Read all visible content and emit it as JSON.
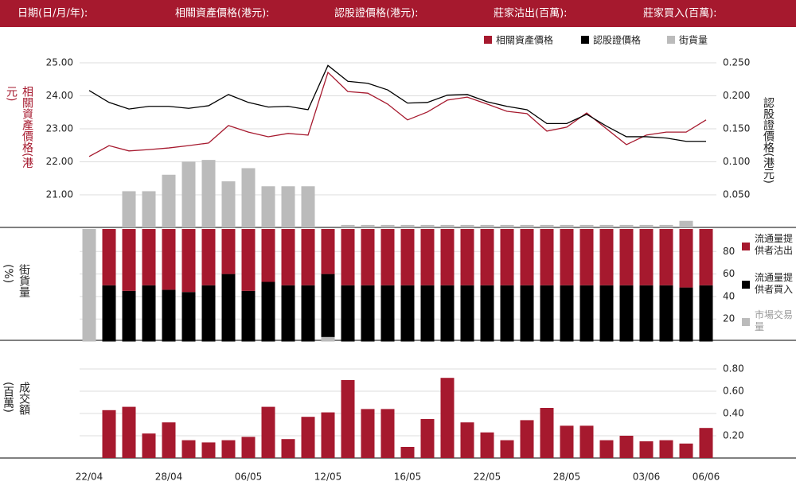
{
  "header": {
    "labels": [
      "日期(日/月/年):",
      "相關資產價格(港元):",
      "認股證價格(港元):",
      "莊家沽出(百萬):",
      "莊家買入(百萬):"
    ]
  },
  "chart_data": [
    {
      "type": "line",
      "y_label": "相關資產價格(港元)",
      "y2_label": "認股證價格(港元)",
      "ylim": [
        20,
        25
      ],
      "yticks": [
        {
          "value": 21,
          "label": "21.00"
        },
        {
          "value": 22,
          "label": "22.00"
        },
        {
          "value": 23,
          "label": "23.00"
        },
        {
          "value": 24,
          "label": "24.00"
        },
        {
          "value": 25,
          "label": "25.00"
        }
      ],
      "y2lim": [
        0,
        0.25
      ],
      "y2ticks": [
        {
          "value": 0.05,
          "label": "0.050"
        },
        {
          "value": 0.1,
          "label": "0.100"
        },
        {
          "value": 0.15,
          "label": "0.150"
        },
        {
          "value": 0.2,
          "label": "0.200"
        },
        {
          "value": 0.25,
          "label": "0.250"
        }
      ],
      "y3lim": [
        0,
        100
      ],
      "grid": true,
      "series": [
        {
          "name": "相關資產價格",
          "color": "#a6192e",
          "values": [
            22.16,
            22.49,
            22.33,
            22.37,
            22.42,
            22.49,
            22.57,
            23.1,
            22.9,
            22.76,
            22.86,
            22.81,
            24.71,
            24.13,
            24.08,
            23.75,
            23.27,
            23.51,
            23.87,
            23.96,
            23.75,
            23.53,
            23.46,
            22.93,
            23.05,
            23.48,
            23.0,
            22.52,
            22.81,
            22.9,
            22.9,
            23.27
          ]
        },
        {
          "name": "認股證價格",
          "color": "#000000",
          "axis": "y2",
          "values": [
            0.208,
            0.19,
            0.18,
            0.184,
            0.184,
            0.181,
            0.185,
            0.202,
            0.19,
            0.183,
            0.184,
            0.179,
            0.246,
            0.222,
            0.219,
            0.209,
            0.189,
            0.19,
            0.201,
            0.202,
            0.191,
            0.184,
            0.179,
            0.158,
            0.158,
            0.172,
            0.154,
            0.138,
            0.138,
            0.136,
            0.131,
            0.131
          ]
        },
        {
          "name": "街貨量",
          "color": "#bbbbbb",
          "axis": "y3",
          "type": "bar",
          "values": [
            0,
            0,
            22,
            22,
            32,
            40,
            41,
            28,
            36,
            25,
            25,
            25,
            0,
            1.5,
            1.5,
            1.5,
            1.5,
            1.5,
            1.5,
            1.5,
            1.5,
            1.5,
            1.5,
            1.5,
            1.5,
            1.5,
            1.5,
            1.5,
            1.5,
            1.5,
            4,
            0
          ]
        }
      ]
    },
    {
      "type": "stacked_bar",
      "y_label": "街貨量(%)",
      "ylim": [
        0,
        100
      ],
      "yticks": [
        20,
        40,
        60,
        80
      ],
      "grid": true,
      "series": [
        {
          "name": "流通量提供者沽出",
          "color": "#a6192e",
          "values": [
            0,
            50,
            55,
            50,
            54,
            56,
            50,
            40,
            55,
            47,
            50,
            50,
            40,
            50,
            50,
            50,
            50,
            50,
            50,
            50,
            50,
            50,
            50,
            50,
            50,
            50,
            50,
            50,
            50,
            50,
            52,
            50
          ]
        },
        {
          "name": "流通量提供者買入",
          "color": "#000000",
          "values": [
            0,
            50,
            45,
            50,
            46,
            44,
            50,
            60,
            45,
            53,
            50,
            50,
            56,
            50,
            50,
            50,
            50,
            50,
            50,
            50,
            50,
            50,
            50,
            50,
            50,
            50,
            50,
            50,
            50,
            50,
            48,
            50
          ]
        },
        {
          "name": "市場交易量",
          "color": "#bbbbbb",
          "values": [
            100,
            0,
            0,
            0,
            0,
            0,
            0,
            0,
            0,
            0,
            0,
            0,
            4,
            0,
            0,
            0,
            0,
            0,
            0,
            0,
            0,
            0,
            0,
            0,
            0,
            0,
            0,
            0,
            0,
            0,
            0,
            0
          ]
        }
      ]
    },
    {
      "type": "bar",
      "y_label": "成交額(百萬)",
      "ylim": [
        0,
        1
      ],
      "yticks": [
        {
          "value": 0.2,
          "label": "0.20"
        },
        {
          "value": 0.4,
          "label": "0.40"
        },
        {
          "value": 0.6,
          "label": "0.60"
        },
        {
          "value": 0.8,
          "label": "0.80"
        }
      ],
      "grid": true,
      "color": "#a6192e",
      "values": [
        null,
        0.43,
        0.46,
        0.22,
        0.32,
        0.16,
        0.14,
        0.16,
        0.19,
        0.46,
        0.17,
        0.37,
        0.41,
        0.7,
        0.44,
        0.44,
        0.1,
        0.35,
        0.72,
        0.32,
        0.23,
        0.16,
        0.34,
        0.45,
        0.29,
        0.29,
        0.16,
        0.2,
        0.15,
        0.16,
        0.13,
        0.27
      ],
      "categories": [
        "22/04",
        null,
        null,
        null,
        "28/04",
        null,
        null,
        null,
        "06/05",
        null,
        null,
        null,
        "12/05",
        null,
        null,
        null,
        "16/05",
        null,
        null,
        null,
        "22/05",
        null,
        null,
        null,
        "28/05",
        null,
        null,
        null,
        "03/06",
        null,
        null,
        "06/06"
      ]
    }
  ]
}
